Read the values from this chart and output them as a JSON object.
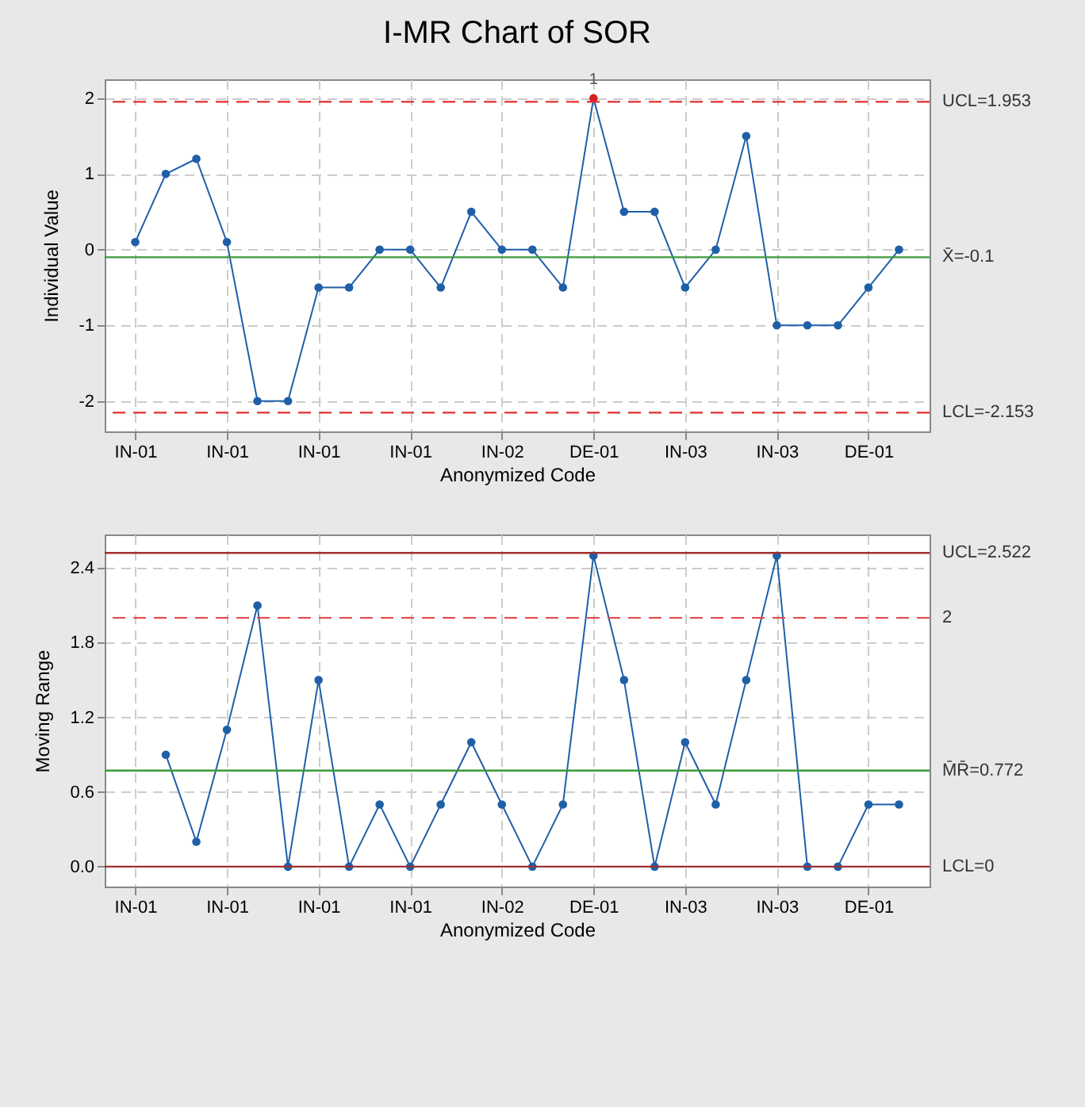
{
  "chart_data": [
    {
      "type": "line",
      "title": "I-MR Chart of SOR",
      "xlabel": "Anonymized Code",
      "ylabel": "Individual Value",
      "categories": [
        "IN-01",
        null,
        null,
        "IN-01",
        null,
        null,
        "IN-01",
        null,
        null,
        "IN-01",
        null,
        null,
        "IN-02",
        null,
        null,
        "DE-01",
        null,
        null,
        "IN-03",
        null,
        null,
        "IN-03",
        null,
        null,
        "DE-01",
        null
      ],
      "series": [
        {
          "color": "#1f5fa8",
          "colors": [
            "#1f5fa8",
            "#1f5fa8",
            "#1f5fa8",
            "#1f5fa8",
            "#1f5fa8",
            "#1f5fa8",
            "#1f5fa8",
            "#1f5fa8",
            "#1f5fa8",
            "#1f5fa8",
            "#1f5fa8",
            "#1f5fa8",
            "#1f5fa8",
            "#1f5fa8",
            "#1f5fa8",
            "#d62020",
            "#1f5fa8",
            "#1f5fa8",
            "#1f5fa8",
            "#1f5fa8",
            "#1f5fa8",
            "#1f5fa8",
            "#1f5fa8",
            "#1f5fa8",
            "#1f5fa8",
            "#1f5fa8"
          ],
          "values": [
            0.1,
            1,
            1.2,
            0.1,
            -2,
            -2,
            -0.5,
            -0.5,
            0,
            0,
            -0.5,
            0.5,
            0,
            0,
            -0.5,
            2,
            0.5,
            0.5,
            -0.5,
            0,
            1.5,
            -1,
            -1,
            -1,
            -0.5,
            0
          ]
        }
      ],
      "ylim": [
        -2.4,
        2.25
      ],
      "yticks": [
        -2,
        -1,
        0,
        1,
        2
      ],
      "grid": true,
      "marker": "circle",
      "ref_lines": [
        {
          "axis": "y",
          "value": 1.953,
          "label": "UCL=1.953",
          "color": "#e03030",
          "line_style": "dashed"
        },
        {
          "axis": "y",
          "value": -0.1,
          "label": "X̄=-0.1",
          "color": "#3a9a3a",
          "line_style": "solid"
        },
        {
          "axis": "y",
          "value": -2.153,
          "label": "LCL=-2.153",
          "color": "#e03030",
          "line_style": "dashed"
        }
      ],
      "annotations": [
        {
          "text": "1",
          "x": "DE-01",
          "y": 2
        }
      ]
    },
    {
      "type": "line",
      "xlabel": "Anonymized Code",
      "ylabel": "Moving Range",
      "categories": [
        "IN-01",
        null,
        null,
        "IN-01",
        null,
        null,
        "IN-01",
        null,
        null,
        "IN-01",
        null,
        null,
        "IN-02",
        null,
        null,
        "DE-01",
        null,
        null,
        "IN-03",
        null,
        null,
        "IN-03",
        null,
        null,
        "DE-01",
        null
      ],
      "series": [
        {
          "color": "#1f5fa8",
          "values": [
            null,
            0.9,
            0.2,
            1.1,
            2.1,
            0,
            1.5,
            0,
            0.5,
            0,
            0.5,
            1,
            0.5,
            0,
            0.5,
            2.5,
            1.5,
            0,
            1,
            0.5,
            1.5,
            2.5,
            0,
            0,
            0.5,
            0.5
          ]
        }
      ],
      "ylim": [
        -0.16,
        2.67
      ],
      "yticks": [
        {
          "value": 0,
          "label": "0.0"
        },
        0.6,
        1.2,
        1.8,
        2.4
      ],
      "grid": true,
      "marker": "circle",
      "ref_lines": [
        {
          "axis": "y",
          "value": 2.522,
          "label": "UCL=2.522",
          "color": "#a03030",
          "line_style": "solid"
        },
        {
          "axis": "y",
          "value": 2,
          "label": "2",
          "color": "#e05050",
          "line_style": "dashed"
        },
        {
          "axis": "y",
          "value": 0.772,
          "label": "M̄R̄=0.772",
          "color": "#3a9a3a",
          "line_style": "solid"
        },
        {
          "axis": "y",
          "value": 0,
          "label": "LCL=0",
          "color": "#a03030",
          "line_style": "solid"
        }
      ]
    }
  ]
}
